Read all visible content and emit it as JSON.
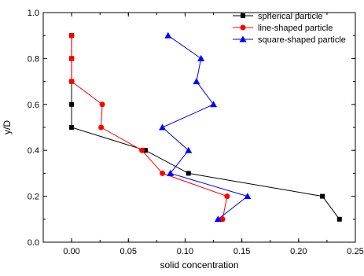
{
  "chart_data": {
    "type": "line",
    "xlabel": "solid concentration",
    "ylabel": "y/D",
    "xlim": [
      -0.025,
      0.25
    ],
    "ylim": [
      0.0,
      1.0
    ],
    "xticks": [
      0.0,
      0.05,
      0.1,
      0.15,
      0.2,
      0.25
    ],
    "xtick_labels": [
      "0.00",
      "0.05",
      "0.10",
      "0.15",
      "0.20",
      "0.25"
    ],
    "yticks": [
      0.0,
      0.2,
      0.4,
      0.6,
      0.8,
      1.0
    ],
    "ytick_labels": [
      "0.0",
      "0.2",
      "0.4",
      "0.6",
      "0.8",
      "1.0"
    ],
    "grid": false,
    "legend_position": "top-right",
    "series": [
      {
        "name": "spherical particle",
        "color": "#000000",
        "marker": "square",
        "x": [
          0.0,
          0.0,
          0.0,
          0.0,
          0.0,
          0.065,
          0.103,
          0.221,
          0.236
        ],
        "y": [
          0.9,
          0.8,
          0.7,
          0.6,
          0.5,
          0.4,
          0.3,
          0.2,
          0.1
        ]
      },
      {
        "name": "line-shaped particle",
        "color": "#ff0000",
        "marker": "circle",
        "x": [
          0.0,
          0.0,
          0.0,
          0.027,
          0.026,
          0.062,
          0.08,
          0.137,
          0.133
        ],
        "y": [
          0.9,
          0.8,
          0.7,
          0.6,
          0.5,
          0.4,
          0.3,
          0.2,
          0.1
        ]
      },
      {
        "name": "square-shaped particle",
        "color": "#0000ff",
        "marker": "triangle",
        "x": [
          0.085,
          0.114,
          0.11,
          0.125,
          0.08,
          0.103,
          0.087,
          0.155,
          0.129
        ],
        "y": [
          0.9,
          0.8,
          0.7,
          0.6,
          0.5,
          0.4,
          0.3,
          0.2,
          0.1
        ]
      }
    ]
  }
}
